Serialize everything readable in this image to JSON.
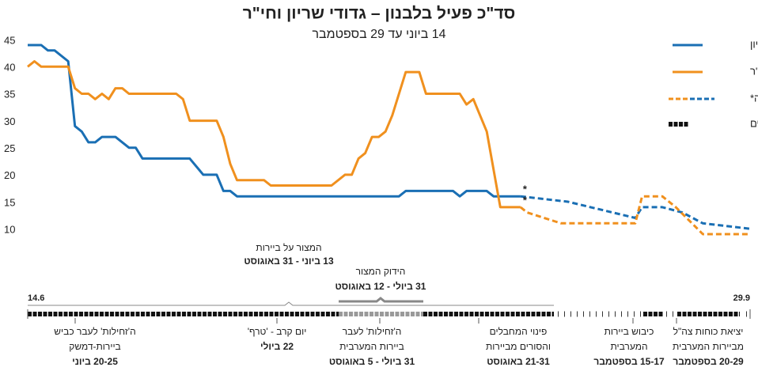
{
  "chart_data": {
    "type": "line",
    "title": "סד\"כ פעיל בלבנון – גדודי שריון וחי\"ר",
    "subtitle": "14 ביוני עד 29 בספטמבר",
    "xlim": [
      0,
      107
    ],
    "xticks": [
      {
        "value": 0,
        "label": "14.6"
      },
      {
        "value": 107,
        "label": "29.9"
      }
    ],
    "ylim": [
      10,
      45
    ],
    "yticks": [
      10,
      15,
      20,
      25,
      30,
      35,
      40,
      45
    ],
    "grid": false,
    "series": [
      {
        "name": "גדודי שריון",
        "color": "#1a6fb4",
        "x": [
          0,
          2,
          3,
          4,
          6,
          7,
          8,
          9,
          10,
          11,
          13,
          15,
          16,
          17,
          24,
          26,
          28,
          29,
          30,
          31,
          55,
          56,
          63,
          64,
          65,
          68,
          69,
          73
        ],
        "values": [
          45,
          45,
          44,
          44,
          42,
          30,
          29,
          27,
          27,
          28,
          28,
          26,
          26,
          24,
          24,
          21,
          21,
          18,
          18,
          17,
          17,
          18,
          18,
          17,
          18,
          18,
          17,
          17
        ],
        "estimate_x": [
          73,
          80,
          90,
          91,
          94,
          97,
          100,
          107
        ],
        "estimate_values": [
          17,
          16,
          13,
          15,
          15,
          14,
          12,
          11
        ]
      },
      {
        "name": "גדודי חי\"ר",
        "color": "#f0901e",
        "x": [
          0,
          1,
          2,
          6,
          7,
          8,
          9,
          10,
          11,
          12,
          13,
          14,
          15,
          22,
          23,
          24,
          28,
          29,
          30,
          31,
          35,
          36,
          45,
          47,
          48,
          49,
          50,
          51,
          52,
          53,
          54,
          56,
          58,
          59,
          64,
          65,
          66,
          68,
          70,
          73
        ],
        "values": [
          41,
          42,
          41,
          41,
          37,
          36,
          36,
          35,
          36,
          35,
          37,
          37,
          36,
          36,
          35,
          31,
          31,
          28,
          23,
          20,
          20,
          19,
          19,
          21,
          21,
          24,
          25,
          28,
          28,
          29,
          32,
          40,
          40,
          36,
          36,
          34,
          35,
          29,
          15,
          15
        ],
        "estimate_x": [
          73,
          74,
          79,
          90,
          91,
          94,
          96,
          100,
          107
        ],
        "estimate_values": [
          15,
          14,
          12,
          12,
          17,
          17,
          15,
          10,
          10
        ]
      }
    ],
    "legend": {
      "estimate": "הערכה*",
      "days": "ימים"
    },
    "estimate_marker": "*",
    "ranges": [
      {
        "title": "המצור על ביירות",
        "dates": "13 ביוני - 31 באוגוסט"
      },
      {
        "title": "הידוק המצור",
        "dates": "31 ביולי - 12 באוגוסט"
      }
    ],
    "events": [
      {
        "lines": [
          "ה'זחילות' לעבר כביש",
          "ביירות-דמשק"
        ],
        "dates": "20-25 ביוני"
      },
      {
        "lines": [
          "יום קרב - 'טרף'"
        ],
        "dates": "22 ביולי"
      },
      {
        "lines": [
          "ה'זחילות' לעבר",
          "ביירות המערבית"
        ],
        "dates": "31 ביולי - 5 באוגוסט"
      },
      {
        "lines": [
          "פינוי המחבלים",
          "והסורים מביירות"
        ],
        "dates": "21-31 באוגוסט"
      },
      {
        "lines": [
          "כיבוש ביירות",
          "המערבית"
        ],
        "dates": "15-17 בספטמבר"
      },
      {
        "lines": [
          "יציאת כוחות צה\"ל",
          "מביירות המערבית"
        ],
        "dates": "20-29 בספטמבר"
      }
    ]
  }
}
